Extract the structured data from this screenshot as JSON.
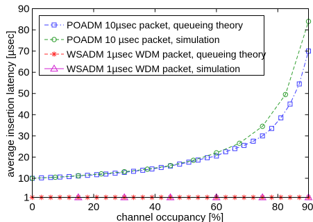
{
  "chart_data": {
    "type": "line",
    "xlabel": "channel occupancy [%]",
    "ylabel": "average insertion latency [µsec]",
    "xlim": [
      0,
      90
    ],
    "ylim": [
      1,
      90
    ],
    "x_ticks": [
      0,
      20,
      40,
      60,
      80,
      90
    ],
    "y_ticks": [
      1,
      10,
      20,
      30,
      40,
      50,
      60,
      70,
      80,
      90
    ],
    "x_tick_labels": [
      "0",
      "20",
      "40",
      "60",
      "80",
      "90"
    ],
    "y_tick_labels": [
      "1",
      "10",
      "20",
      "30",
      "40",
      "50",
      "60",
      "70",
      "80",
      "90"
    ],
    "grid": false,
    "legend_position": "top-left",
    "series": [
      {
        "name": "POADM 10µsec packet, queueing theory",
        "color": "#3b3bff",
        "line_style": "dash-dot",
        "marker": "square",
        "x": [
          0,
          3,
          6,
          9,
          12,
          15,
          18,
          21,
          24,
          27,
          30,
          33,
          36,
          39,
          42,
          45,
          48,
          51,
          54,
          57,
          60,
          63,
          66,
          69,
          72,
          75,
          78,
          81,
          84,
          87,
          90
        ],
        "y": [
          10.0,
          10.2,
          10.4,
          10.6,
          10.8,
          11.1,
          11.4,
          11.7,
          12.0,
          12.4,
          12.8,
          13.3,
          13.8,
          14.4,
          15.1,
          15.8,
          16.7,
          17.6,
          18.6,
          19.7,
          20.5,
          22.5,
          24.0,
          25.5,
          27.5,
          30.0,
          33.5,
          38.5,
          45.0,
          54.5,
          70.0
        ]
      },
      {
        "name": "POADM 10 µsec packet, simulation",
        "color": "#2e9e2e",
        "line_style": "dashed",
        "marker": "circle",
        "x": [
          0,
          7.5,
          15,
          22.5,
          30,
          37.5,
          45,
          52.5,
          60,
          67.5,
          75,
          82.5,
          90
        ],
        "y": [
          10.0,
          10.5,
          11.2,
          12.1,
          13.1,
          14.3,
          16.0,
          18.5,
          22.0,
          26.5,
          34.5,
          49.5,
          84.0
        ]
      },
      {
        "name": "WSADM 1µsec WDM packet, queueing theory",
        "color": "#ff2a2a",
        "line_style": "dashed",
        "marker": "asterisk",
        "x": [
          0,
          3,
          6,
          9,
          12,
          15,
          18,
          21,
          24,
          27,
          30,
          33,
          36,
          39,
          42,
          45,
          48,
          51,
          54,
          57,
          60,
          63,
          66,
          69,
          72,
          75,
          78,
          81,
          84,
          87,
          90
        ],
        "y": [
          1,
          1,
          1,
          1,
          1,
          1,
          1,
          1,
          1,
          1,
          1,
          1,
          1,
          1,
          1,
          1,
          1,
          1,
          1,
          1,
          1,
          1,
          1,
          1,
          1,
          1,
          1,
          1,
          1,
          1,
          1
        ]
      },
      {
        "name": "WSADM 1µsec WDM packet, simulation",
        "color": "#d020d0",
        "line_style": "solid",
        "marker": "triangle",
        "x": [
          15,
          30,
          45,
          60,
          75,
          90
        ],
        "y": [
          1,
          1,
          1,
          1,
          1,
          1
        ]
      }
    ]
  }
}
